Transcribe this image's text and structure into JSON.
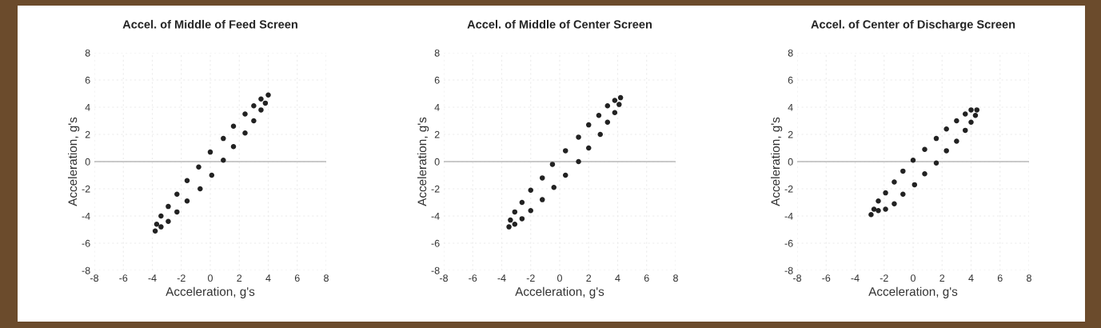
{
  "chart_data": [
    {
      "type": "scatter",
      "title": "Accel. of Middle of Feed Screen",
      "xlabel": "Acceleration, g's",
      "ylabel": "Acceleration, g's",
      "xlim": [
        -8,
        8
      ],
      "ylim": [
        -8,
        8
      ],
      "xticks": [
        -8,
        -6,
        -4,
        -2,
        0,
        2,
        4,
        6,
        8
      ],
      "yticks": [
        -8,
        -6,
        -4,
        -2,
        0,
        2,
        4,
        6,
        8
      ],
      "grid": true,
      "marker": "circle",
      "ref_lines": [
        {
          "axis": "y",
          "value": 0,
          "color": "#b8b8b8"
        }
      ],
      "series": [
        {
          "color": "#222222",
          "x": [
            -3.8,
            -3.7,
            -3.4,
            -3.4,
            -2.9,
            -2.9,
            -2.3,
            -2.3,
            -1.6,
            -1.6,
            -0.7,
            -0.8,
            0.1,
            0.0,
            0.9,
            0.9,
            1.6,
            1.6,
            2.4,
            2.4,
            3.0,
            3.0,
            3.5,
            3.5,
            3.8,
            4.0
          ],
          "values": [
            -5.1,
            -4.6,
            -4.8,
            -4.0,
            -4.4,
            -3.3,
            -3.7,
            -2.4,
            -2.9,
            -1.4,
            -2.0,
            -0.4,
            -1.0,
            0.7,
            0.1,
            1.7,
            1.1,
            2.6,
            2.1,
            3.5,
            3.0,
            4.1,
            3.8,
            4.6,
            4.3,
            4.9
          ]
        }
      ]
    },
    {
      "type": "scatter",
      "title": "Accel. of Middle of Center Screen",
      "xlabel": "Acceleration, g's",
      "ylabel": "Acceleration, g's",
      "xlim": [
        -8,
        8
      ],
      "ylim": [
        -8,
        8
      ],
      "xticks": [
        -8,
        -6,
        -4,
        -2,
        0,
        2,
        4,
        6,
        8
      ],
      "yticks": [
        -8,
        -6,
        -4,
        -2,
        0,
        2,
        4,
        6,
        8
      ],
      "grid": true,
      "marker": "circle",
      "ref_lines": [
        {
          "axis": "y",
          "value": 0,
          "color": "#b8b8b8"
        }
      ],
      "series": [
        {
          "color": "#222222",
          "x": [
            -3.5,
            -3.4,
            -3.1,
            -3.1,
            -2.6,
            -2.6,
            -2.0,
            -2.0,
            -1.2,
            -1.2,
            -0.4,
            -0.5,
            0.4,
            0.4,
            1.3,
            1.3,
            2.0,
            2.0,
            2.8,
            2.7,
            3.3,
            3.3,
            3.8,
            3.8,
            4.1,
            4.2
          ],
          "values": [
            -4.8,
            -4.3,
            -4.6,
            -3.7,
            -4.2,
            -3.0,
            -3.6,
            -2.1,
            -2.8,
            -1.2,
            -1.9,
            -0.2,
            -1.0,
            0.8,
            0.0,
            1.8,
            1.0,
            2.7,
            2.0,
            3.4,
            2.9,
            4.1,
            3.6,
            4.5,
            4.2,
            4.7
          ]
        }
      ]
    },
    {
      "type": "scatter",
      "title": "Accel. of Center of Discharge Screen",
      "xlabel": "Acceleration, g's",
      "ylabel": "Acceleration, g's",
      "xlim": [
        -8,
        8
      ],
      "ylim": [
        -8,
        8
      ],
      "xticks": [
        -8,
        -6,
        -4,
        -2,
        0,
        2,
        4,
        6,
        8
      ],
      "yticks": [
        -8,
        -6,
        -4,
        -2,
        0,
        2,
        4,
        6,
        8
      ],
      "grid": true,
      "marker": "circle",
      "ref_lines": [
        {
          "axis": "y",
          "value": 0,
          "color": "#b8b8b8"
        }
      ],
      "series": [
        {
          "color": "#222222",
          "x": [
            -2.9,
            -2.7,
            -2.4,
            -2.4,
            -1.9,
            -1.9,
            -1.3,
            -1.3,
            -0.7,
            -0.7,
            0.1,
            0.0,
            0.8,
            0.8,
            1.6,
            1.6,
            2.3,
            2.3,
            3.0,
            3.0,
            3.6,
            3.6,
            4.0,
            4.0,
            4.4,
            4.3
          ],
          "values": [
            -3.9,
            -3.5,
            -2.9,
            -3.6,
            -3.5,
            -2.3,
            -3.1,
            -1.5,
            -2.4,
            -0.7,
            -1.7,
            0.1,
            -0.9,
            0.9,
            -0.1,
            1.7,
            0.8,
            2.4,
            1.5,
            3.0,
            2.3,
            3.5,
            2.9,
            3.8,
            3.8,
            3.4
          ]
        }
      ]
    }
  ]
}
